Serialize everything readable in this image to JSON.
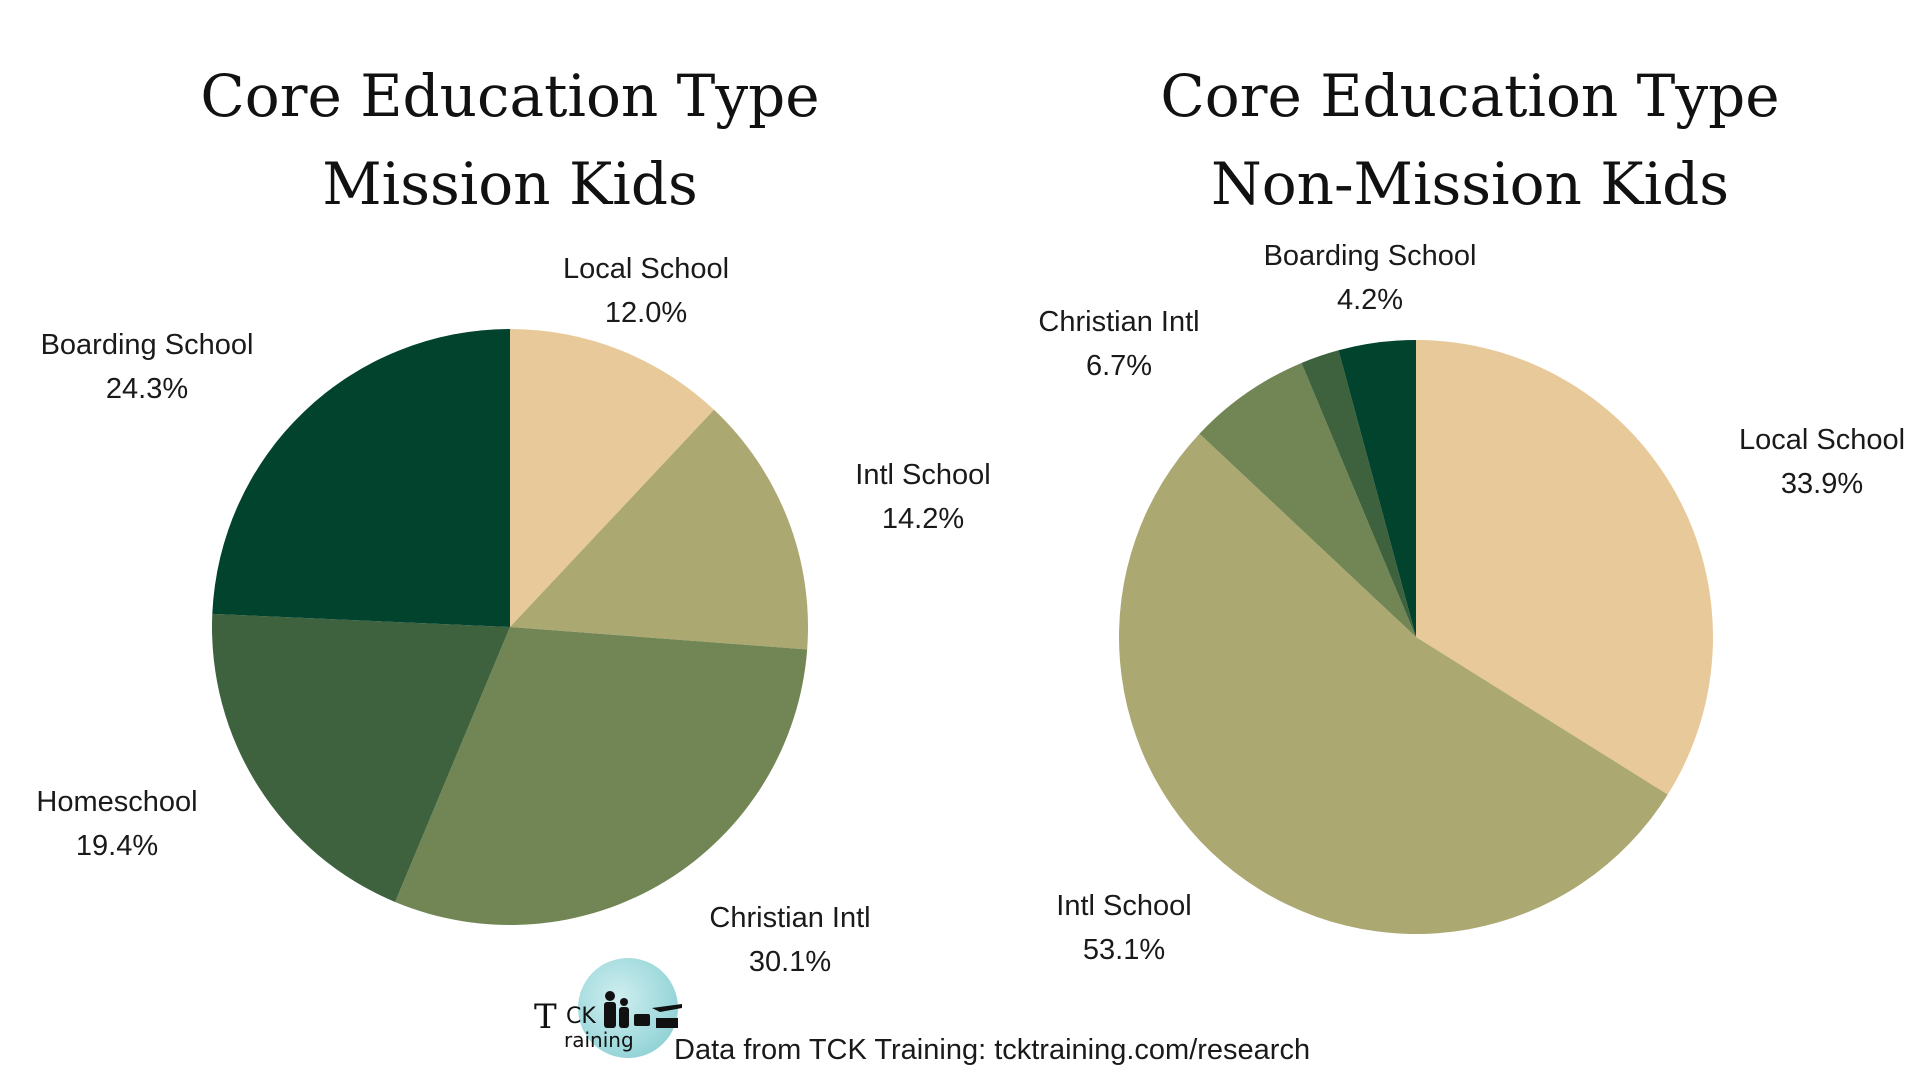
{
  "chart_data": [
    {
      "type": "pie",
      "title": [
        "Core Education Type",
        "Mission Kids"
      ],
      "slices": [
        {
          "name": "Local School",
          "value": 12.0,
          "label": "12.0%",
          "color": "#E8C999"
        },
        {
          "name": "Intl School",
          "value": 14.2,
          "label": "14.2%",
          "color": "#ACA872"
        },
        {
          "name": "Christian Intl",
          "value": 30.1,
          "label": "30.1%",
          "color": "#718654"
        },
        {
          "name": "Homeschool",
          "value": 19.4,
          "label": "19.4%",
          "color": "#3D623D"
        },
        {
          "name": "Boarding School",
          "value": 24.3,
          "label": "24.3%",
          "color": "#02432E"
        }
      ],
      "start": "12 o'clock",
      "direction": "clockwise"
    },
    {
      "type": "pie",
      "title": [
        "Core Education Type",
        "Non-Mission Kids"
      ],
      "slices": [
        {
          "name": "Local School",
          "value": 33.9,
          "label": "33.9%",
          "color": "#E8C999"
        },
        {
          "name": "Intl School",
          "value": 53.1,
          "label": "53.1%",
          "color": "#ACA872"
        },
        {
          "name": "Christian Intl",
          "value": 6.7,
          "label": "6.7%",
          "color": "#718654"
        },
        {
          "name": "",
          "value": 2.1,
          "label": "",
          "color": "#3D623D"
        },
        {
          "name": "Boarding School",
          "value": 4.2,
          "label": "4.2%",
          "color": "#02432E"
        }
      ],
      "start": "12 o'clock",
      "direction": "clockwise"
    }
  ],
  "footer": {
    "source": "Data from TCK Training: tcktraining.com/research"
  },
  "logo": {
    "line1_big": "T",
    "line1_small": "CK",
    "line2": "raining"
  }
}
